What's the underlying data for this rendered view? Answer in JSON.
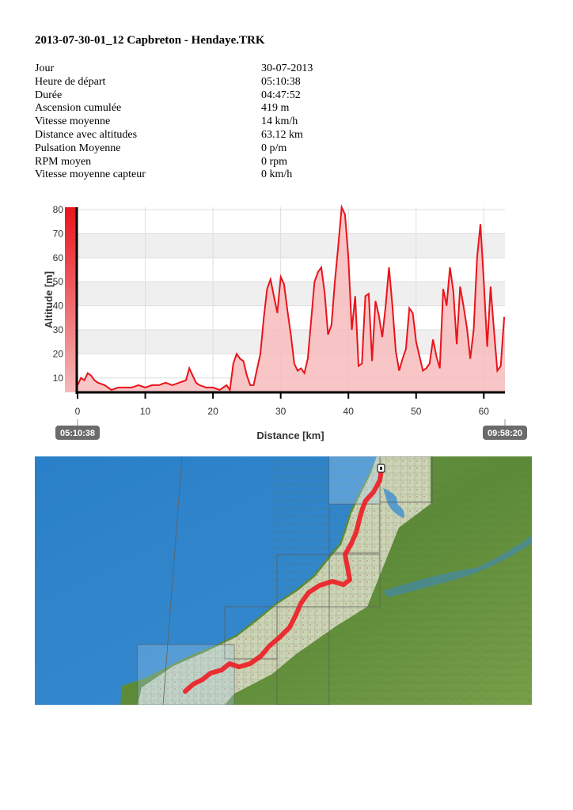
{
  "document": {
    "title": "2013-07-30-01_12 Capbreton - Hendaye.TRK",
    "stats": [
      {
        "label": "Jour",
        "value": "30-07-2013"
      },
      {
        "label": "Heure de départ",
        "value": "05:10:38"
      },
      {
        "label": "Durée",
        "value": "04:47:52"
      },
      {
        "label": "Ascension cumulée",
        "value": "419 m"
      },
      {
        "label": "Vitesse moyenne",
        "value": "14 km/h"
      },
      {
        "label": "Distance avec altitudes",
        "value": "63.12 km"
      },
      {
        "label": "Pulsation Moyenne",
        "value": "0 p/m"
      },
      {
        "label": "RPM moyen",
        "value": "0 rpm"
      },
      {
        "label": "Vitesse moyenne capteur",
        "value": "0 km/h"
      }
    ]
  },
  "chart_data": {
    "type": "area",
    "xlabel": "Distance [km]",
    "ylabel": "Altitude [m]",
    "xlim": [
      0,
      63.12
    ],
    "ylim": [
      4,
      81
    ],
    "xticks": [
      0,
      10,
      20,
      30,
      40,
      50,
      60
    ],
    "yticks": [
      10,
      20,
      30,
      40,
      50,
      60,
      70,
      80
    ],
    "start_time": "05:10:38",
    "end_time": "09:58:20",
    "line_color": "#e8141c",
    "fill_color": "#f7bcbc",
    "grid": true,
    "x": [
      0,
      0.5,
      1,
      1.5,
      2,
      2.5,
      3,
      4,
      5,
      6,
      7,
      8,
      9,
      10,
      11,
      12,
      13,
      14,
      15,
      16,
      16.5,
      17,
      17.5,
      18,
      19,
      20,
      21,
      21.5,
      22,
      22.5,
      23,
      23.5,
      24,
      24.5,
      25,
      25.5,
      26,
      27,
      27.5,
      28,
      28.5,
      29,
      29.5,
      30,
      30.5,
      31,
      31.5,
      32,
      32.5,
      33,
      33.5,
      34,
      35,
      35.5,
      36,
      36.5,
      37,
      37.5,
      38,
      38.5,
      39,
      39.5,
      40,
      40.5,
      41,
      41.5,
      42,
      42.5,
      43,
      43.5,
      44,
      44.5,
      45,
      45.5,
      46,
      46.5,
      47,
      47.5,
      48,
      48.5,
      49,
      49.5,
      50,
      51,
      51.5,
      52,
      52.5,
      53,
      53.5,
      54,
      54.5,
      55,
      55.5,
      56,
      56.5,
      57,
      57.5,
      58,
      58.5,
      59,
      59.5,
      60,
      60.5,
      61,
      61.5,
      62,
      62.5,
      63,
      63.12
    ],
    "y": [
      7,
      10,
      9,
      12,
      11,
      9,
      8,
      7,
      5,
      6,
      6,
      6,
      7,
      6,
      7,
      7,
      8,
      7,
      8,
      9,
      14,
      11,
      8,
      7,
      6,
      6,
      5,
      6,
      7,
      5,
      16,
      20,
      18,
      17,
      11,
      7,
      7,
      20,
      35,
      47,
      51,
      44,
      37,
      52,
      49,
      38,
      28,
      16,
      13,
      14,
      12,
      18,
      50,
      54,
      56,
      45,
      28,
      32,
      50,
      65,
      81,
      78,
      60,
      30,
      44,
      15,
      16,
      44,
      45,
      17,
      42,
      36,
      27,
      40,
      56,
      40,
      21,
      13,
      18,
      22,
      39,
      37,
      25,
      13,
      14,
      16,
      26,
      19,
      14,
      47,
      40,
      56,
      46,
      24,
      48,
      40,
      31,
      18,
      30,
      60,
      74,
      50,
      23,
      48,
      30,
      13,
      15,
      35,
      35
    ]
  },
  "map": {
    "sea_color": "#2b7fc5",
    "land_color": "#5f8f3a",
    "track_color": "#ee1c24"
  }
}
